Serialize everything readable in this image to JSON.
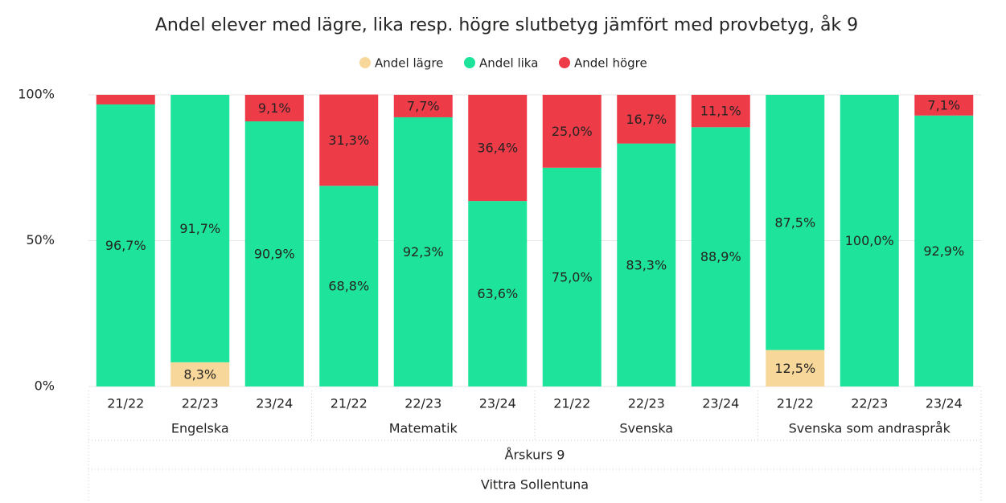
{
  "chart_data": {
    "type": "stacked-bar",
    "title": "Andel elever med lägre, lika resp. högre slutbetyg jämfört med provbetyg, åk 9",
    "categories": [
      "21/22",
      "22/23",
      "23/24",
      "21/22",
      "22/23",
      "23/24",
      "21/22",
      "22/23",
      "23/24",
      "21/22",
      "22/23",
      "23/24"
    ],
    "groups": [
      "Engelska",
      "Matematik",
      "Svenska",
      "Svenska som andraspråk"
    ],
    "levels": [
      "Årskurs 9",
      "Vittra Sollentuna"
    ],
    "series": [
      {
        "name": "Andel lägre",
        "color": "#f7d79a",
        "values": [
          0,
          8.3,
          0,
          0,
          0,
          0,
          0,
          0,
          0,
          12.5,
          0,
          0
        ],
        "value_labels": [
          null,
          "8,3%",
          null,
          null,
          null,
          null,
          null,
          null,
          null,
          "12,5%",
          null,
          null
        ]
      },
      {
        "name": "Andel lika",
        "color": "#1ee39b",
        "values": [
          96.7,
          91.7,
          90.9,
          68.8,
          92.3,
          63.6,
          75.0,
          83.3,
          88.9,
          87.5,
          100.0,
          92.9
        ],
        "value_labels": [
          "96,7%",
          "91,7%",
          "90,9%",
          "68,8%",
          "92,3%",
          "63,6%",
          "75,0%",
          "83,3%",
          "88,9%",
          "87,5%",
          "100,0%",
          "92,9%"
        ]
      },
      {
        "name": "Andel högre",
        "color": "#ee3b48",
        "values": [
          3.3,
          0,
          9.1,
          31.3,
          7.7,
          36.4,
          25.0,
          16.7,
          11.1,
          0,
          0,
          7.1
        ],
        "value_labels": [
          null,
          null,
          "9,1%",
          "31,3%",
          "7,7%",
          "36,4%",
          "25,0%",
          "16,7%",
          "11,1%",
          null,
          null,
          "7,1%"
        ]
      }
    ],
    "ylim": [
      0,
      100
    ],
    "yticks": [
      {
        "value": 0,
        "label": "0%"
      },
      {
        "value": 50,
        "label": "50%"
      },
      {
        "value": 100,
        "label": "100%"
      }
    ],
    "grid": true,
    "legend": "top"
  }
}
